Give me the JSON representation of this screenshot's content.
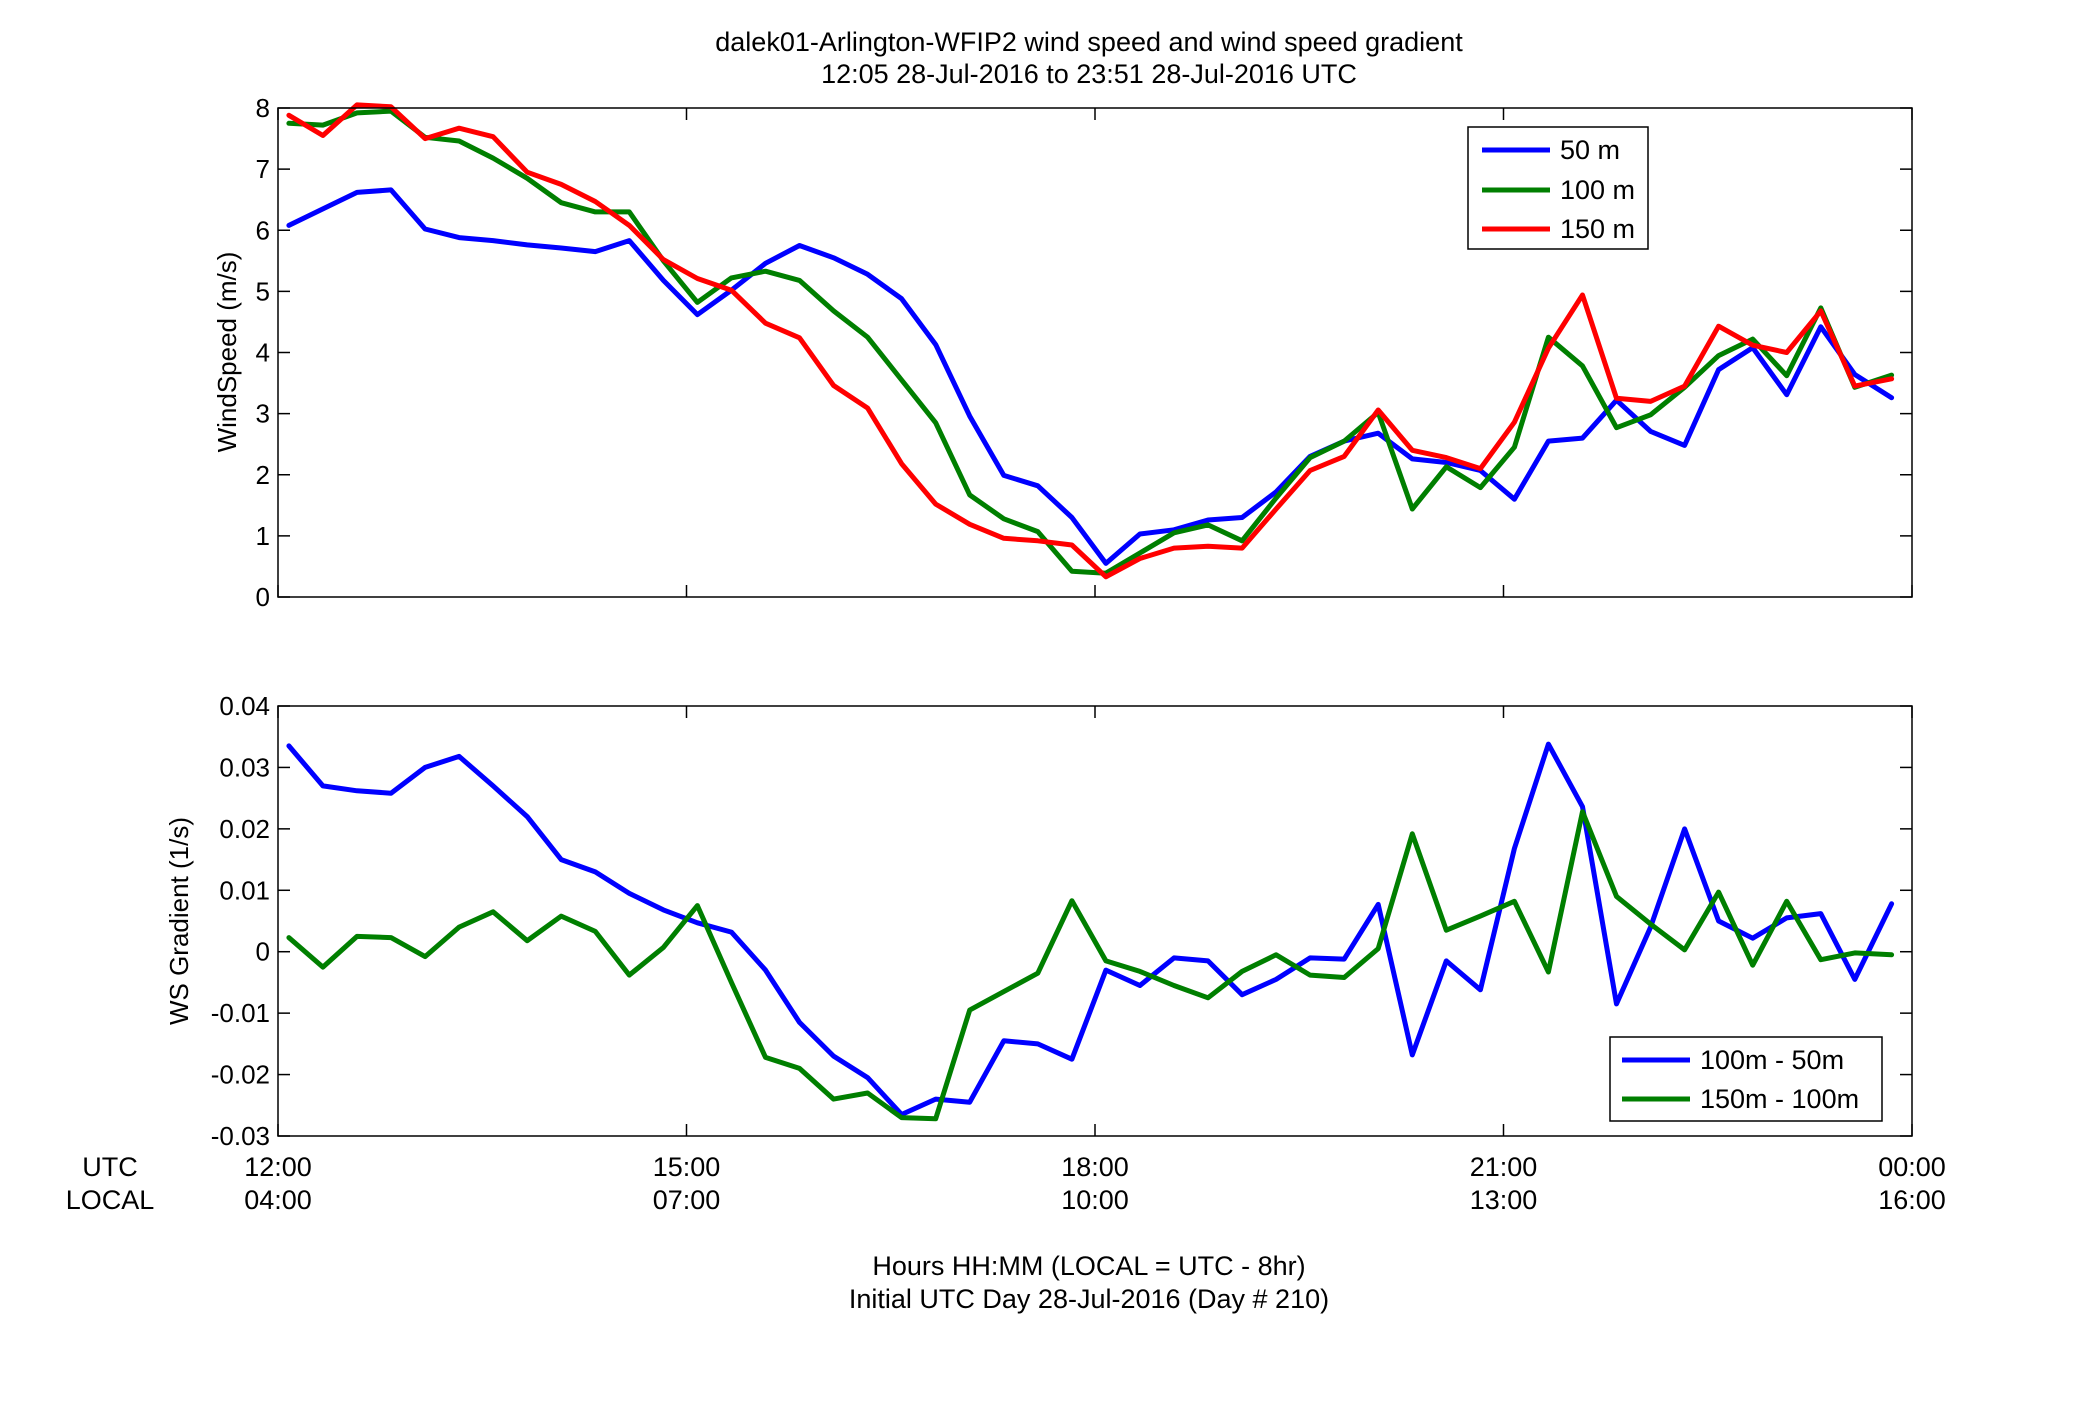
{
  "title": {
    "line1": "dalek01-Arlington-WFIP2  wind speed and wind speed gradient",
    "line2": "12:05 28-Jul-2016 to 23:51 28-Jul-2016  UTC"
  },
  "x_axis": {
    "row_label_utc": "UTC",
    "row_label_local": "LOCAL",
    "range_hours": [
      12,
      24
    ],
    "ticks_hours": [
      12,
      15,
      18,
      21,
      24
    ],
    "utc_labels": [
      "12:00",
      "15:00",
      "18:00",
      "21:00",
      "00:00"
    ],
    "local_labels": [
      "04:00",
      "07:00",
      "10:00",
      "13:00",
      "16:00"
    ],
    "xlabel_line1": "Hours HH:MM  (LOCAL = UTC - 8hr)",
    "xlabel_line2": "Initial UTC Day 28-Jul-2016 (Day # 210)"
  },
  "colors": {
    "blue": "#0000ff",
    "green": "#007f00",
    "red": "#ff0000"
  },
  "chart_data": [
    {
      "type": "line",
      "ylabel": "WindSpeed (m/s)",
      "ylim": [
        0,
        8
      ],
      "yticks": [
        0,
        1,
        2,
        3,
        4,
        5,
        6,
        7,
        8
      ],
      "grid": false,
      "legend_position": "top-right",
      "x_units": "hours UTC",
      "x": [
        12.08,
        12.33,
        12.58,
        12.83,
        13.08,
        13.33,
        13.58,
        13.83,
        14.08,
        14.33,
        14.58,
        14.83,
        15.08,
        15.33,
        15.58,
        15.83,
        16.08,
        16.33,
        16.58,
        16.83,
        17.08,
        17.33,
        17.58,
        17.83,
        18.08,
        18.33,
        18.58,
        18.83,
        19.08,
        19.33,
        19.58,
        19.83,
        20.08,
        20.33,
        20.58,
        20.83,
        21.08,
        21.33,
        21.58,
        21.83,
        22.08,
        22.33,
        22.58,
        22.83,
        23.08,
        23.33,
        23.58,
        23.85
      ],
      "series": [
        {
          "name": "50 m",
          "color": "#0000ff",
          "values": [
            6.08,
            6.35,
            6.62,
            6.66,
            6.02,
            5.88,
            5.83,
            5.76,
            5.71,
            5.65,
            5.83,
            5.18,
            4.62,
            5.02,
            5.46,
            5.75,
            5.55,
            5.28,
            4.88,
            4.13,
            2.96,
            1.99,
            1.82,
            1.3,
            0.55,
            1.03,
            1.1,
            1.26,
            1.3,
            1.72,
            2.3,
            2.55,
            2.68,
            2.26,
            2.2,
            2.07,
            1.6,
            2.55,
            2.6,
            3.22,
            2.71,
            2.48,
            3.72,
            4.08,
            3.31,
            4.42,
            3.64,
            3.26
          ]
        },
        {
          "name": "100 m",
          "color": "#007f00",
          "values": [
            7.75,
            7.72,
            7.92,
            7.95,
            7.52,
            7.46,
            7.18,
            6.85,
            6.45,
            6.3,
            6.3,
            5.5,
            4.82,
            5.22,
            5.33,
            5.18,
            4.68,
            4.25,
            3.55,
            2.85,
            1.67,
            1.28,
            1.07,
            0.42,
            0.39,
            0.72,
            1.05,
            1.18,
            0.92,
            1.62,
            2.28,
            2.55,
            3.02,
            1.44,
            2.13,
            1.79,
            2.45,
            4.25,
            3.78,
            2.77,
            2.98,
            3.43,
            3.95,
            4.22,
            3.62,
            4.73,
            3.43,
            3.63
          ]
        },
        {
          "name": "150 m",
          "color": "#ff0000",
          "values": [
            7.88,
            7.55,
            8.05,
            8.02,
            7.5,
            7.67,
            7.53,
            6.95,
            6.75,
            6.47,
            6.08,
            5.52,
            5.21,
            5.02,
            4.48,
            4.24,
            3.46,
            3.09,
            2.18,
            1.52,
            1.19,
            0.96,
            0.92,
            0.85,
            0.33,
            0.63,
            0.8,
            0.83,
            0.8,
            1.44,
            2.07,
            2.3,
            3.06,
            2.4,
            2.28,
            2.1,
            2.86,
            4.07,
            4.94,
            3.25,
            3.2,
            3.45,
            4.43,
            4.12,
            4.0,
            4.68,
            3.45,
            3.57
          ]
        }
      ]
    },
    {
      "type": "line",
      "ylabel": "WS Gradient (1/s)",
      "ylim": [
        -0.03,
        0.04
      ],
      "yticks": [
        -0.03,
        -0.02,
        -0.01,
        0,
        0.01,
        0.02,
        0.03,
        0.04
      ],
      "grid": false,
      "legend_position": "bottom-right",
      "x_units": "hours UTC",
      "x": [
        12.08,
        12.33,
        12.58,
        12.83,
        13.08,
        13.33,
        13.58,
        13.83,
        14.08,
        14.33,
        14.58,
        14.83,
        15.08,
        15.33,
        15.58,
        15.83,
        16.08,
        16.33,
        16.58,
        16.83,
        17.08,
        17.33,
        17.58,
        17.83,
        18.08,
        18.33,
        18.58,
        18.83,
        19.08,
        19.33,
        19.58,
        19.83,
        20.08,
        20.33,
        20.58,
        20.83,
        21.08,
        21.33,
        21.58,
        21.83,
        22.08,
        22.33,
        22.58,
        22.83,
        23.08,
        23.33,
        23.58,
        23.85
      ],
      "series": [
        {
          "name": "100m - 50m",
          "color": "#0000ff",
          "values": [
            0.0335,
            0.027,
            0.0262,
            0.0258,
            0.03,
            0.0318,
            0.027,
            0.022,
            0.015,
            0.013,
            0.0095,
            0.0068,
            0.0047,
            0.0032,
            -0.003,
            -0.0115,
            -0.017,
            -0.0205,
            -0.0265,
            -0.024,
            -0.0245,
            -0.0145,
            -0.015,
            -0.0175,
            -0.003,
            -0.0055,
            -0.001,
            -0.0015,
            -0.007,
            -0.0045,
            -0.001,
            -0.0012,
            0.0077,
            -0.0168,
            -0.0015,
            -0.0062,
            0.0168,
            0.0338,
            0.0236,
            -0.0085,
            0.004,
            0.02,
            0.005,
            0.0022,
            0.0055,
            0.0062,
            -0.0045,
            0.0078
          ]
        },
        {
          "name": "150m - 100m",
          "color": "#007f00",
          "values": [
            0.0023,
            -0.0025,
            0.0025,
            0.0023,
            -0.0008,
            0.004,
            0.0065,
            0.0018,
            0.0058,
            0.0033,
            -0.0038,
            0.0007,
            0.0075,
            -0.005,
            -0.0172,
            -0.019,
            -0.024,
            -0.023,
            -0.027,
            -0.0272,
            -0.0095,
            -0.0065,
            -0.0035,
            0.0083,
            -0.0015,
            -0.0032,
            -0.0055,
            -0.0075,
            -0.0032,
            -0.0005,
            -0.0038,
            -0.0042,
            0.0005,
            0.0192,
            0.0035,
            0.0058,
            0.0082,
            -0.0033,
            0.0228,
            0.009,
            0.0045,
            0.0003,
            0.0097,
            -0.0022,
            0.0082,
            -0.0013,
            -0.0002,
            -0.0005
          ]
        }
      ]
    }
  ]
}
